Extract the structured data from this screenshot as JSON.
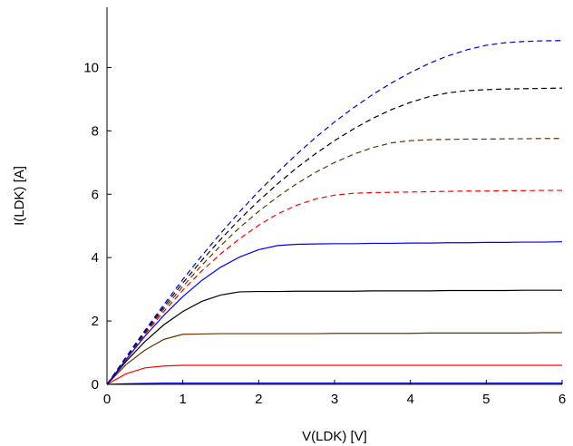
{
  "chart_data": {
    "type": "line",
    "title": "",
    "xlabel": "V(LDK) [V]",
    "ylabel": "I(LDK) [A]",
    "xlim": [
      0,
      6
    ],
    "ylim": [
      0,
      11.9
    ],
    "xticks": [
      "0",
      "1",
      "2",
      "3",
      "4",
      "5",
      "6"
    ],
    "yticks": [
      "0",
      "2",
      "4",
      "6",
      "8",
      "10"
    ],
    "grid": false,
    "x": [
      0,
      0.25,
      0.5,
      0.75,
      1.0,
      1.25,
      1.5,
      1.75,
      2.0,
      2.25,
      2.5,
      2.75,
      3.0,
      3.25,
      3.5,
      3.75,
      4.0,
      4.25,
      4.5,
      4.75,
      5.0,
      5.25,
      5.5,
      5.75,
      6.0
    ],
    "series": [
      {
        "color": "#0000cc",
        "dash": false,
        "values": [
          0,
          0.02,
          0.03,
          0.04,
          0.04,
          0.04,
          0.04,
          0.04,
          0.04,
          0.04,
          0.04,
          0.04,
          0.04,
          0.04,
          0.04,
          0.04,
          0.04,
          0.04,
          0.04,
          0.04,
          0.04,
          0.04,
          0.04,
          0.04,
          0.04
        ]
      },
      {
        "color": "#ff0000",
        "dash": false,
        "values": [
          0,
          0.33,
          0.52,
          0.58,
          0.6,
          0.6,
          0.6,
          0.6,
          0.6,
          0.6,
          0.6,
          0.6,
          0.6,
          0.6,
          0.6,
          0.6,
          0.6,
          0.6,
          0.6,
          0.6,
          0.6,
          0.6,
          0.6,
          0.6,
          0.6
        ]
      },
      {
        "color": "#663300",
        "dash": false,
        "values": [
          0,
          0.62,
          1.08,
          1.42,
          1.58,
          1.59,
          1.6,
          1.6,
          1.6,
          1.6,
          1.6,
          1.6,
          1.61,
          1.61,
          1.61,
          1.61,
          1.61,
          1.62,
          1.62,
          1.62,
          1.62,
          1.62,
          1.62,
          1.63,
          1.63
        ]
      },
      {
        "color": "#000000",
        "dash": false,
        "values": [
          0,
          0.72,
          1.35,
          1.88,
          2.3,
          2.62,
          2.82,
          2.92,
          2.93,
          2.93,
          2.94,
          2.94,
          2.94,
          2.94,
          2.95,
          2.95,
          2.95,
          2.95,
          2.96,
          2.96,
          2.96,
          2.96,
          2.97,
          2.97,
          2.97
        ]
      },
      {
        "color": "#0000ff",
        "dash": false,
        "values": [
          0,
          0.78,
          1.52,
          2.18,
          2.77,
          3.28,
          3.7,
          4.02,
          4.25,
          4.38,
          4.42,
          4.43,
          4.44,
          4.44,
          4.45,
          4.45,
          4.46,
          4.46,
          4.47,
          4.47,
          4.48,
          4.48,
          4.49,
          4.49,
          4.5
        ]
      },
      {
        "color": "#ff0000",
        "dash": true,
        "values": [
          0,
          0.8,
          1.58,
          2.3,
          2.97,
          3.58,
          4.12,
          4.6,
          5.02,
          5.38,
          5.65,
          5.85,
          5.97,
          6.03,
          6.05,
          6.06,
          6.07,
          6.08,
          6.09,
          6.1,
          6.1,
          6.11,
          6.11,
          6.12,
          6.12
        ]
      },
      {
        "color": "#663300",
        "dash": true,
        "values": [
          0,
          0.82,
          1.62,
          2.38,
          3.09,
          3.76,
          4.38,
          4.95,
          5.46,
          5.92,
          6.33,
          6.69,
          7.0,
          7.26,
          7.47,
          7.62,
          7.69,
          7.72,
          7.73,
          7.74,
          7.74,
          7.75,
          7.75,
          7.76,
          7.76
        ]
      },
      {
        "color": "#000000",
        "dash": true,
        "values": [
          0,
          0.84,
          1.66,
          2.45,
          3.2,
          3.91,
          4.58,
          5.21,
          5.79,
          6.33,
          6.83,
          7.28,
          7.69,
          8.06,
          8.39,
          8.67,
          8.9,
          9.08,
          9.2,
          9.27,
          9.3,
          9.32,
          9.33,
          9.34,
          9.35
        ]
      },
      {
        "color": "#0000cc",
        "dash": true,
        "values": [
          0,
          0.86,
          1.7,
          2.52,
          3.31,
          4.06,
          4.77,
          5.45,
          6.09,
          6.69,
          7.26,
          7.79,
          8.28,
          8.73,
          9.14,
          9.51,
          9.84,
          10.13,
          10.37,
          10.56,
          10.7,
          10.78,
          10.82,
          10.84,
          10.85
        ]
      }
    ]
  }
}
